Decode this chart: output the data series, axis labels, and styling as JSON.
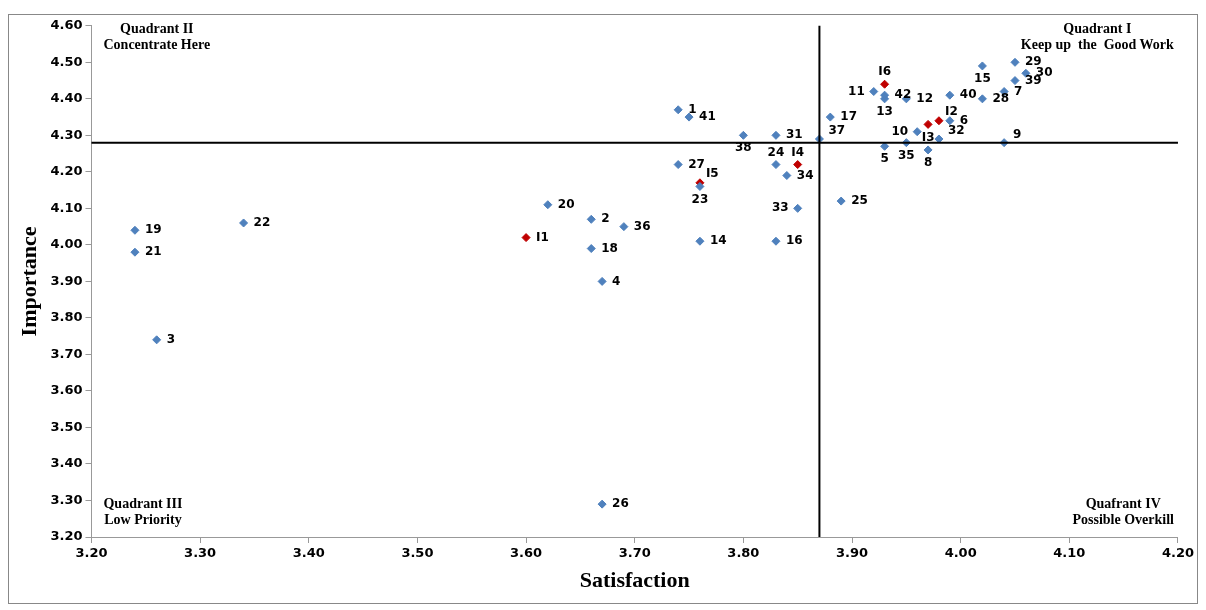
{
  "chart_data": {
    "type": "scatter",
    "xlabel": "Satisfaction",
    "ylabel": "Importance",
    "xlim": [
      3.2,
      4.2
    ],
    "xticks": [
      {
        "value": 3.2,
        "label": "3.20"
      },
      {
        "value": 3.3,
        "label": "3.30"
      },
      {
        "value": 3.4,
        "label": "3.40"
      },
      {
        "value": 3.5,
        "label": "3.50"
      },
      {
        "value": 3.6,
        "label": "3.60"
      },
      {
        "value": 3.7,
        "label": "3.70"
      },
      {
        "value": 3.8,
        "label": "3.80"
      },
      {
        "value": 3.9,
        "label": "3.90"
      },
      {
        "value": 4.0,
        "label": "4.00"
      },
      {
        "value": 4.1,
        "label": "4.10"
      },
      {
        "value": 4.2,
        "label": "4.20"
      }
    ],
    "ylim": [
      3.2,
      4.6
    ],
    "yticks": [
      {
        "value": 3.2,
        "label": "3.20"
      },
      {
        "value": 3.3,
        "label": "3.30"
      },
      {
        "value": 3.4,
        "label": "3.40"
      },
      {
        "value": 3.5,
        "label": "3.50"
      },
      {
        "value": 3.6,
        "label": "3.60"
      },
      {
        "value": 3.7,
        "label": "3.70"
      },
      {
        "value": 3.8,
        "label": "3.80"
      },
      {
        "value": 3.9,
        "label": "3.90"
      },
      {
        "value": 4.0,
        "label": "4.00"
      },
      {
        "value": 4.1,
        "label": "4.10"
      },
      {
        "value": 4.2,
        "label": "4.20"
      },
      {
        "value": 4.3,
        "label": "4.30"
      },
      {
        "value": 4.4,
        "label": "4.40"
      },
      {
        "value": 4.5,
        "label": "4.50"
      },
      {
        "value": 4.6,
        "label": "4.60"
      }
    ],
    "grid": false,
    "legend": false,
    "marker": "diamond",
    "series": [
      {
        "color": "#4f81bd",
        "x": [
          3.74,
          3.66,
          3.26,
          3.67,
          3.93,
          3.99,
          4.04,
          3.97,
          4.04,
          3.96,
          3.92,
          3.95,
          3.93,
          3.76,
          4.02,
          3.83,
          3.88,
          3.66,
          3.24,
          3.62,
          3.24,
          3.34,
          3.76,
          3.83,
          3.89,
          3.67,
          3.74,
          4.02,
          4.05,
          4.06,
          3.83,
          3.98,
          3.85,
          3.84,
          3.95,
          3.69,
          3.87,
          3.8,
          4.05,
          3.99,
          3.75,
          3.93
        ],
        "values": [
          4.37,
          4.07,
          3.74,
          3.9,
          4.27,
          4.34,
          4.42,
          4.26,
          4.28,
          4.31,
          4.42,
          4.4,
          4.4,
          4.01,
          4.49,
          4.01,
          4.35,
          3.99,
          4.04,
          4.11,
          3.98,
          4.06,
          4.16,
          4.22,
          4.12,
          3.29,
          4.22,
          4.4,
          4.5,
          4.47,
          4.3,
          4.29,
          4.1,
          4.19,
          4.28,
          4.05,
          4.29,
          4.3,
          4.45,
          4.41,
          4.35,
          4.41
        ]
      },
      {
        "color": "#c00000",
        "x": [
          3.6,
          3.98,
          3.97,
          3.85,
          3.76,
          3.93
        ],
        "values": [
          4.02,
          4.34,
          4.33,
          4.22,
          4.17,
          4.44
        ]
      }
    ],
    "ref_lines": [
      {
        "axis": "x",
        "value": 3.87,
        "color": "#000000"
      },
      {
        "axis": "y",
        "value": 4.28,
        "color": "#000000"
      }
    ],
    "annotations": [
      "Quadrant II\nConcentrate Here",
      "Quadrant I\nKeep up  the  Good Work",
      "Quadrant III\nLow Priority",
      "Quafrant IV\nPossible Overkill",
      {
        "text": "1",
        "x": 3.74,
        "y": 4.37
      },
      {
        "text": "2",
        "x": 3.66,
        "y": 4.07
      },
      {
        "text": "3",
        "x": 3.26,
        "y": 3.74
      },
      {
        "text": "4",
        "x": 3.67,
        "y": 3.9
      },
      {
        "text": "5",
        "x": 3.93,
        "y": 4.27
      },
      {
        "text": "6",
        "x": 3.99,
        "y": 4.34
      },
      {
        "text": "7",
        "x": 4.04,
        "y": 4.42
      },
      {
        "text": "8",
        "x": 3.97,
        "y": 4.26
      },
      {
        "text": "9",
        "x": 4.04,
        "y": 4.28
      },
      {
        "text": "10",
        "x": 3.96,
        "y": 4.31
      },
      {
        "text": "11",
        "x": 3.92,
        "y": 4.42
      },
      {
        "text": "12",
        "x": 3.95,
        "y": 4.4
      },
      {
        "text": "13",
        "x": 3.93,
        "y": 4.4
      },
      {
        "text": "14",
        "x": 3.76,
        "y": 4.01
      },
      {
        "text": "15",
        "x": 4.02,
        "y": 4.49
      },
      {
        "text": "16",
        "x": 3.83,
        "y": 4.01
      },
      {
        "text": "17",
        "x": 3.88,
        "y": 4.35
      },
      {
        "text": "18",
        "x": 3.66,
        "y": 3.99
      },
      {
        "text": "19",
        "x": 3.24,
        "y": 4.04
      },
      {
        "text": "20",
        "x": 3.62,
        "y": 4.11
      },
      {
        "text": "21",
        "x": 3.24,
        "y": 3.98
      },
      {
        "text": "22",
        "x": 3.34,
        "y": 4.06
      },
      {
        "text": "23",
        "x": 3.76,
        "y": 4.16
      },
      {
        "text": "24",
        "x": 3.83,
        "y": 4.22
      },
      {
        "text": "25",
        "x": 3.89,
        "y": 4.12
      },
      {
        "text": "26",
        "x": 3.67,
        "y": 3.29
      },
      {
        "text": "27",
        "x": 3.74,
        "y": 4.22
      },
      {
        "text": "28",
        "x": 4.02,
        "y": 4.4
      },
      {
        "text": "29",
        "x": 4.05,
        "y": 4.5
      },
      {
        "text": "30",
        "x": 4.06,
        "y": 4.47
      },
      {
        "text": "31",
        "x": 3.83,
        "y": 4.3
      },
      {
        "text": "32",
        "x": 3.98,
        "y": 4.29
      },
      {
        "text": "33",
        "x": 3.85,
        "y": 4.1
      },
      {
        "text": "34",
        "x": 3.84,
        "y": 4.19
      },
      {
        "text": "35",
        "x": 3.95,
        "y": 4.28
      },
      {
        "text": "36",
        "x": 3.69,
        "y": 4.05
      },
      {
        "text": "37",
        "x": 3.87,
        "y": 4.29
      },
      {
        "text": "38",
        "x": 3.8,
        "y": 4.3
      },
      {
        "text": "39",
        "x": 4.05,
        "y": 4.45
      },
      {
        "text": "40",
        "x": 3.99,
        "y": 4.41
      },
      {
        "text": "41",
        "x": 3.75,
        "y": 4.35
      },
      {
        "text": "42",
        "x": 3.93,
        "y": 4.41
      },
      {
        "text": "I1",
        "x": 3.6,
        "y": 4.02
      },
      {
        "text": "I2",
        "x": 3.98,
        "y": 4.34
      },
      {
        "text": "I3",
        "x": 3.97,
        "y": 4.33
      },
      {
        "text": "I4",
        "x": 3.85,
        "y": 4.22
      },
      {
        "text": "I5",
        "x": 3.76,
        "y": 4.17
      },
      {
        "text": "I6",
        "x": 3.93,
        "y": 4.44
      }
    ]
  }
}
